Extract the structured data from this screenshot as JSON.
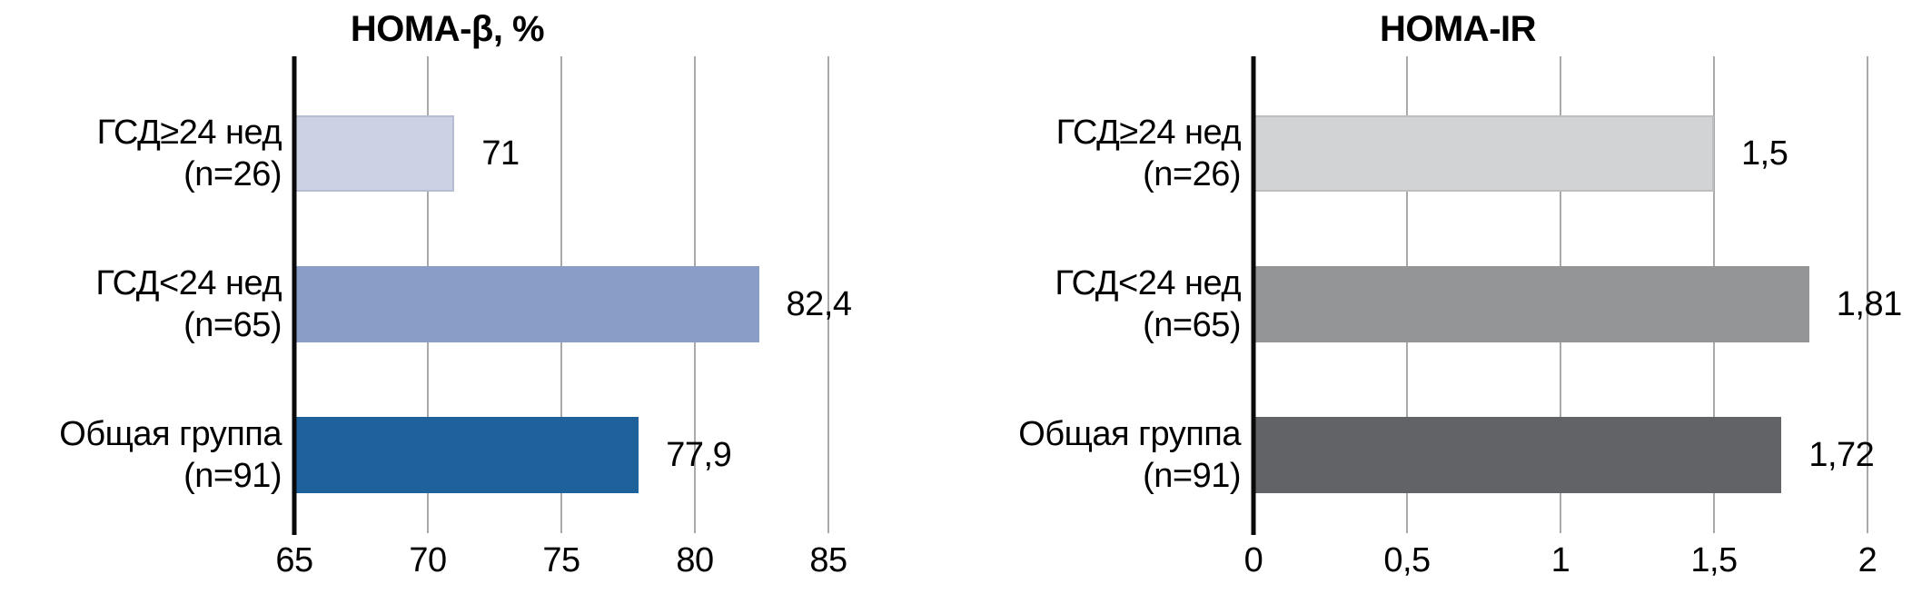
{
  "figure": {
    "description": "Two horizontal bar charts comparing insulin indices across gestational diabetes groups"
  },
  "chart_data": [
    {
      "type": "bar",
      "orientation": "horizontal",
      "title": "HOMA-β, %",
      "categories": [
        {
          "line1": "ГСД≥24 нед",
          "line2": "(n=26)"
        },
        {
          "line1": "ГСД<24 нед",
          "line2": "(n=65)"
        },
        {
          "line1": "Общая группа",
          "line2": "(n=91)"
        }
      ],
      "values": [
        71,
        82.4,
        77.9
      ],
      "value_labels": [
        "71",
        "82,4",
        "77,9"
      ],
      "bar_colors": [
        "#ccd2e4",
        "#8a9dc6",
        "#1f629b"
      ],
      "bar_border_colors": [
        "#b5bcd4",
        null,
        null
      ],
      "xlim": [
        65,
        85
      ],
      "axis_ticks": [
        {
          "value": 65,
          "label": "65"
        },
        {
          "value": 70,
          "label": "70"
        },
        {
          "value": 75,
          "label": "75"
        },
        {
          "value": 80,
          "label": "80"
        },
        {
          "value": 85,
          "label": "85"
        }
      ],
      "grid": true,
      "gridline_color": "#a9a9a9",
      "axis_color": "#0a0a0a"
    },
    {
      "type": "bar",
      "orientation": "horizontal",
      "title": "HOMA-IR",
      "categories": [
        {
          "line1": "ГСД≥24 нед",
          "line2": "(n=26)"
        },
        {
          "line1": "ГСД<24 нед",
          "line2": "(n=65)"
        },
        {
          "line1": "Общая группа",
          "line2": "(n=91)"
        }
      ],
      "values": [
        1.5,
        1.81,
        1.72
      ],
      "value_labels": [
        "1,5",
        "1,81",
        "1,72"
      ],
      "bar_colors": [
        "#d2d3d4",
        "#949597",
        "#626366"
      ],
      "bar_border_colors": [
        "#bdbebf",
        null,
        null
      ],
      "xlim": [
        0,
        2
      ],
      "axis_ticks": [
        {
          "value": 0,
          "label": "0"
        },
        {
          "value": 0.5,
          "label": "0,5"
        },
        {
          "value": 1,
          "label": "1"
        },
        {
          "value": 1.5,
          "label": "1,5"
        },
        {
          "value": 2,
          "label": "2"
        }
      ],
      "grid": true,
      "gridline_color": "#a9a9a9",
      "axis_color": "#0a0a0a"
    }
  ]
}
